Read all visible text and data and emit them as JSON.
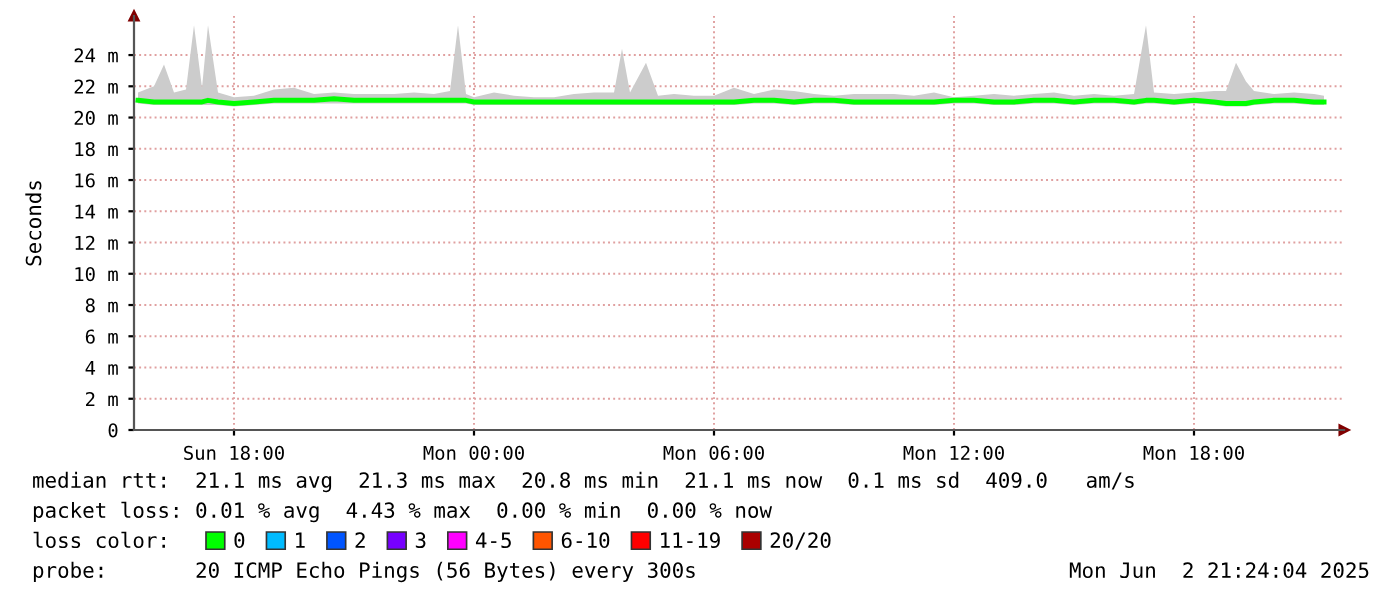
{
  "chart_data": {
    "type": "line",
    "ylabel": "Seconds",
    "x": [
      "2025-06-01T15:36",
      "2025-06-01T16:00",
      "2025-06-01T16:15",
      "2025-06-01T16:30",
      "2025-06-01T16:48",
      "2025-06-01T17:00",
      "2025-06-01T17:12",
      "2025-06-01T17:21",
      "2025-06-01T17:36",
      "2025-06-01T18:00",
      "2025-06-01T18:30",
      "2025-06-01T19:00",
      "2025-06-01T19:30",
      "2025-06-01T20:00",
      "2025-06-01T20:30",
      "2025-06-01T21:00",
      "2025-06-01T21:30",
      "2025-06-01T22:00",
      "2025-06-01T22:30",
      "2025-06-01T23:00",
      "2025-06-01T23:24",
      "2025-06-01T23:36",
      "2025-06-01T23:48",
      "2025-06-02T00:00",
      "2025-06-02T00:30",
      "2025-06-02T01:00",
      "2025-06-02T01:30",
      "2025-06-02T02:00",
      "2025-06-02T02:30",
      "2025-06-02T03:00",
      "2025-06-02T03:30",
      "2025-06-02T03:42",
      "2025-06-02T03:54",
      "2025-06-02T04:18",
      "2025-06-02T04:36",
      "2025-06-02T05:00",
      "2025-06-02T05:30",
      "2025-06-02T06:00",
      "2025-06-02T06:30",
      "2025-06-02T07:00",
      "2025-06-02T07:30",
      "2025-06-02T08:00",
      "2025-06-02T08:30",
      "2025-06-02T09:00",
      "2025-06-02T09:30",
      "2025-06-02T10:00",
      "2025-06-02T10:30",
      "2025-06-02T11:00",
      "2025-06-02T11:30",
      "2025-06-02T12:00",
      "2025-06-02T12:30",
      "2025-06-02T13:00",
      "2025-06-02T13:30",
      "2025-06-02T14:00",
      "2025-06-02T14:30",
      "2025-06-02T15:00",
      "2025-06-02T15:30",
      "2025-06-02T16:00",
      "2025-06-02T16:30",
      "2025-06-02T16:48",
      "2025-06-02T17:00",
      "2025-06-02T17:30",
      "2025-06-02T18:00",
      "2025-06-02T18:30",
      "2025-06-02T18:48",
      "2025-06-02T19:03",
      "2025-06-02T19:18",
      "2025-06-02T19:30",
      "2025-06-02T20:00",
      "2025-06-02T20:30",
      "2025-06-02T21:00",
      "2025-06-02T21:15"
    ],
    "series": [
      {
        "name": "0",
        "color": "#00ff00",
        "values": [
          21.1,
          21.0,
          21.0,
          21.0,
          21.0,
          21.0,
          21.0,
          21.1,
          21.0,
          20.9,
          21.0,
          21.1,
          21.1,
          21.1,
          21.2,
          21.1,
          21.1,
          21.1,
          21.1,
          21.1,
          21.1,
          21.1,
          21.1,
          21.0,
          21.0,
          21.0,
          21.0,
          21.0,
          21.0,
          21.0,
          21.0,
          21.0,
          21.0,
          21.0,
          21.0,
          21.0,
          21.0,
          21.0,
          21.0,
          21.1,
          21.1,
          21.0,
          21.1,
          21.1,
          21.0,
          21.0,
          21.0,
          21.0,
          21.0,
          21.1,
          21.1,
          21.0,
          21.0,
          21.1,
          21.1,
          21.0,
          21.1,
          21.1,
          21.0,
          21.1,
          21.1,
          21.0,
          21.1,
          21.0,
          20.9,
          20.9,
          20.9,
          21.0,
          21.1,
          21.1,
          21.0,
          21.0
        ],
        "upper": [
          21.6,
          22.0,
          23.4,
          21.6,
          21.8,
          25.9,
          21.9,
          25.9,
          21.6,
          21.3,
          21.4,
          21.8,
          21.9,
          21.5,
          21.6,
          21.5,
          21.5,
          21.5,
          21.6,
          21.5,
          21.7,
          25.9,
          21.5,
          21.3,
          21.6,
          21.4,
          21.3,
          21.3,
          21.5,
          21.6,
          21.6,
          24.4,
          21.6,
          23.5,
          21.4,
          21.5,
          21.4,
          21.4,
          21.9,
          21.5,
          21.8,
          21.7,
          21.5,
          21.4,
          21.5,
          21.5,
          21.5,
          21.4,
          21.6,
          21.3,
          21.4,
          21.5,
          21.4,
          21.5,
          21.6,
          21.4,
          21.5,
          21.4,
          21.5,
          25.9,
          21.6,
          21.5,
          21.6,
          21.7,
          21.7,
          23.5,
          22.3,
          21.7,
          21.5,
          21.6,
          21.5,
          21.4
        ],
        "lower": [
          20.9,
          20.8,
          20.8,
          20.8,
          20.8,
          20.8,
          20.8,
          20.8,
          20.8,
          20.7,
          20.8,
          20.9,
          20.9,
          20.9,
          20.9,
          20.9,
          20.9,
          20.9,
          20.9,
          20.9,
          20.9,
          20.9,
          20.9,
          20.8,
          20.8,
          20.8,
          20.8,
          20.8,
          20.8,
          20.8,
          20.8,
          20.8,
          20.8,
          20.8,
          20.8,
          20.8,
          20.8,
          20.8,
          20.8,
          20.9,
          20.9,
          20.8,
          20.9,
          20.9,
          20.8,
          20.8,
          20.8,
          20.8,
          20.8,
          20.9,
          20.9,
          20.8,
          20.8,
          20.9,
          20.9,
          20.8,
          20.9,
          20.9,
          20.8,
          20.9,
          20.9,
          20.8,
          20.9,
          20.8,
          20.7,
          20.7,
          20.7,
          20.8,
          20.9,
          20.9,
          20.8,
          20.8
        ]
      },
      {
        "name": "1",
        "color": "#00bbff",
        "values": [
          null,
          null,
          null,
          null,
          null,
          null,
          null,
          null,
          null,
          null,
          null,
          null,
          null,
          null,
          null,
          null,
          null,
          null,
          null,
          null,
          null,
          null,
          null,
          null,
          null,
          null,
          null,
          null,
          null,
          null,
          null,
          null,
          null,
          null,
          null,
          null,
          null,
          null,
          null,
          null,
          null,
          null,
          null,
          null,
          null,
          null,
          null,
          null,
          null,
          null,
          null,
          null,
          null,
          null,
          null,
          null,
          null,
          null,
          null,
          null,
          null,
          null,
          null,
          null,
          null,
          null,
          null,
          null,
          null,
          null,
          null,
          null
        ]
      },
      {
        "name": "2",
        "color": "#0055ff",
        "values": [
          null,
          null,
          null,
          null,
          null,
          null,
          null,
          null,
          null,
          null,
          null,
          null,
          null,
          null,
          null,
          null,
          null,
          null,
          null,
          null,
          null,
          null,
          null,
          null,
          null,
          null,
          null,
          null,
          null,
          null,
          null,
          null,
          null,
          null,
          null,
          null,
          null,
          null,
          null,
          null,
          null,
          null,
          null,
          null,
          null,
          null,
          null,
          null,
          null,
          null,
          null,
          null,
          null,
          null,
          null,
          null,
          null,
          null,
          null,
          null,
          null,
          null,
          null,
          null,
          null,
          null,
          null,
          null,
          null,
          null,
          null,
          null
        ]
      },
      {
        "name": "3",
        "color": "#7700ff",
        "values": [
          null,
          null,
          null,
          null,
          null,
          null,
          null,
          null,
          null,
          null,
          null,
          null,
          null,
          null,
          null,
          null,
          null,
          null,
          null,
          null,
          null,
          null,
          null,
          null,
          null,
          null,
          null,
          null,
          null,
          null,
          null,
          null,
          null,
          null,
          null,
          null,
          null,
          null,
          null,
          null,
          null,
          null,
          null,
          null,
          null,
          null,
          null,
          null,
          null,
          null,
          null,
          null,
          null,
          null,
          null,
          null,
          null,
          null,
          null,
          null,
          null,
          null,
          null,
          null,
          null,
          null,
          null,
          null,
          null,
          null,
          null,
          null
        ]
      },
      {
        "name": "4-5",
        "color": "#ff00ff",
        "values": [
          null,
          null,
          null,
          null,
          null,
          null,
          null,
          null,
          null,
          null,
          null,
          null,
          null,
          null,
          null,
          null,
          null,
          null,
          null,
          null,
          null,
          null,
          null,
          null,
          null,
          null,
          null,
          null,
          null,
          null,
          null,
          null,
          null,
          null,
          null,
          null,
          null,
          null,
          null,
          null,
          null,
          null,
          null,
          null,
          null,
          null,
          null,
          null,
          null,
          null,
          null,
          null,
          null,
          null,
          null,
          null,
          null,
          null,
          null,
          null,
          null,
          null,
          null,
          null,
          null,
          null,
          null,
          null,
          null,
          null,
          null,
          null
        ]
      },
      {
        "name": "6-10",
        "color": "#ff5500",
        "values": [
          null,
          null,
          null,
          null,
          null,
          null,
          null,
          null,
          null,
          null,
          null,
          null,
          null,
          null,
          null,
          null,
          null,
          null,
          null,
          null,
          null,
          null,
          null,
          null,
          null,
          null,
          null,
          null,
          null,
          null,
          null,
          null,
          null,
          null,
          null,
          null,
          null,
          null,
          null,
          null,
          null,
          null,
          null,
          null,
          null,
          null,
          null,
          null,
          null,
          null,
          null,
          null,
          null,
          null,
          null,
          null,
          null,
          null,
          null,
          null,
          null,
          null,
          null,
          null,
          null,
          null,
          null,
          null,
          null,
          null,
          null,
          null
        ]
      },
      {
        "name": "11-19",
        "color": "#ff0000",
        "values": [
          null,
          null,
          null,
          null,
          null,
          null,
          null,
          null,
          null,
          null,
          null,
          null,
          null,
          null,
          null,
          null,
          null,
          null,
          null,
          null,
          null,
          null,
          null,
          null,
          null,
          null,
          null,
          null,
          null,
          null,
          null,
          null,
          null,
          null,
          null,
          null,
          null,
          null,
          null,
          null,
          null,
          null,
          null,
          null,
          null,
          null,
          null,
          null,
          null,
          null,
          null,
          null,
          null,
          null,
          null,
          null,
          null,
          null,
          null,
          null,
          null,
          null,
          null,
          null,
          null,
          null,
          null,
          null,
          null,
          null,
          null,
          null
        ]
      },
      {
        "name": "20/20",
        "color": "#aa0000",
        "values": [
          null,
          null,
          null,
          null,
          null,
          null,
          null,
          null,
          null,
          null,
          null,
          null,
          null,
          null,
          null,
          null,
          null,
          null,
          null,
          null,
          null,
          null,
          null,
          null,
          null,
          null,
          null,
          null,
          null,
          null,
          null,
          null,
          null,
          null,
          null,
          null,
          null,
          null,
          null,
          null,
          null,
          null,
          null,
          null,
          null,
          null,
          null,
          null,
          null,
          null,
          null,
          null,
          null,
          null,
          null,
          null,
          null,
          null,
          null,
          null,
          null,
          null,
          null,
          null,
          null,
          null,
          null,
          null,
          null,
          null,
          null,
          null
        ]
      }
    ],
    "legend_title": "loss color:",
    "legend": "bottom",
    "xlim": [
      "2025-06-01T15:30",
      "2025-06-02T21:45"
    ],
    "xticks": [
      {
        "value": "2025-06-01T18:00",
        "label": "Sun 18:00"
      },
      {
        "value": "2025-06-02T00:00",
        "label": "Mon 00:00"
      },
      {
        "value": "2025-06-02T06:00",
        "label": "Mon 06:00"
      },
      {
        "value": "2025-06-02T12:00",
        "label": "Mon 12:00"
      },
      {
        "value": "2025-06-02T18:00",
        "label": "Mon 18:00"
      }
    ],
    "ylim": [
      0,
      26.5
    ],
    "yticks": [
      0,
      {
        "value": 2,
        "label": "2 m"
      },
      {
        "value": 4,
        "label": "4 m"
      },
      {
        "value": 6,
        "label": "6 m"
      },
      {
        "value": 8,
        "label": "8 m"
      },
      {
        "value": 10,
        "label": "10 m"
      },
      {
        "value": 12,
        "label": "12 m"
      },
      {
        "value": 14,
        "label": "14 m"
      },
      {
        "value": 16,
        "label": "16 m"
      },
      {
        "value": 18,
        "label": "18 m"
      },
      {
        "value": 20,
        "label": "20 m"
      },
      {
        "value": 22,
        "label": "22 m"
      },
      {
        "value": 24,
        "label": "24 m"
      }
    ],
    "grid": true,
    "annotations": [
      "median rtt:  21.1 ms avg  21.3 ms max  20.8 ms min  21.1 ms now  0.1 ms sd  409.0   am/s",
      "packet loss: 0.01 % avg  4.43 % max  0.00 % min  0.00 % now",
      "probe:       20 ICMP Echo Pings (56 Bytes) every 300s",
      "Mon Jun  2 21:24:04 2025"
    ]
  }
}
